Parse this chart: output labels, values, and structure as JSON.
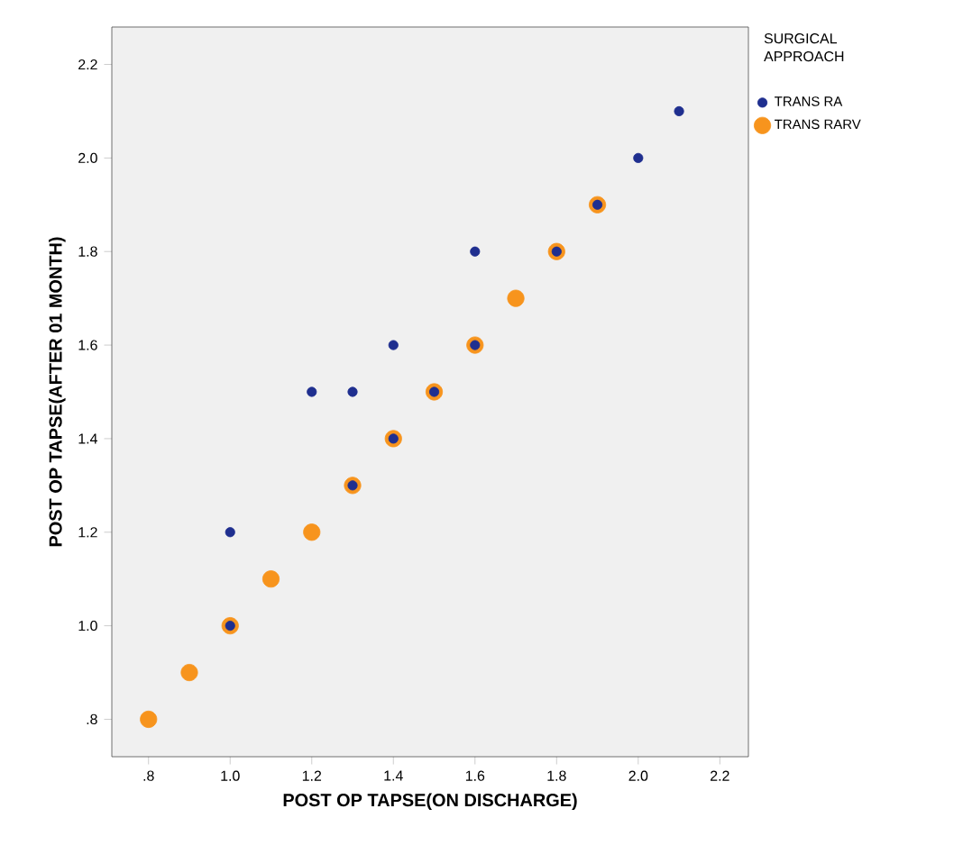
{
  "chart_data": {
    "type": "scatter",
    "xlabel": "POST OP TAPSE(ON DISCHARGE)",
    "ylabel": "POST OP TAPSE(AFTER 01 MONTH)",
    "legend_title": "SURGICAL APPROACH",
    "legend": "right",
    "marker": "circle",
    "xlim": [
      0.71,
      2.27
    ],
    "ylim": [
      0.72,
      2.28
    ],
    "xticks": [
      {
        "value": 0.8,
        "label": ".8"
      },
      {
        "value": 1.0,
        "label": "1.0"
      },
      {
        "value": 1.2,
        "label": "1.2"
      },
      {
        "value": 1.4,
        "label": "1.4"
      },
      {
        "value": 1.6,
        "label": "1.6"
      },
      {
        "value": 1.8,
        "label": "1.8"
      },
      {
        "value": 2.0,
        "label": "2.0"
      },
      {
        "value": 2.2,
        "label": "2.2"
      }
    ],
    "yticks": [
      {
        "value": 0.8,
        "label": ".8"
      },
      {
        "value": 1.0,
        "label": "1.0"
      },
      {
        "value": 1.2,
        "label": "1.2"
      },
      {
        "value": 1.4,
        "label": "1.4"
      },
      {
        "value": 1.6,
        "label": "1.6"
      },
      {
        "value": 1.8,
        "label": "1.8"
      },
      {
        "value": 2.0,
        "label": "2.0"
      },
      {
        "value": 2.2,
        "label": "2.2"
      }
    ],
    "series": [
      {
        "name": "TRANS RA",
        "color": "#1f2f8f",
        "x": [
          1.0,
          1.0,
          1.2,
          1.3,
          1.3,
          1.4,
          1.4,
          1.5,
          1.6,
          1.6,
          1.8,
          1.9,
          2.0,
          2.1
        ],
        "values": [
          1.2,
          1.0,
          1.5,
          1.5,
          1.3,
          1.6,
          1.4,
          1.5,
          1.8,
          1.6,
          1.8,
          1.9,
          2.0,
          2.1
        ]
      },
      {
        "name": "TRANS RARV",
        "color": "#f7941d",
        "x": [
          0.8,
          0.9,
          1.0,
          1.1,
          1.2,
          1.3,
          1.4,
          1.5,
          1.6,
          1.7,
          1.8,
          1.9
        ],
        "values": [
          0.8,
          0.9,
          1.0,
          1.1,
          1.2,
          1.3,
          1.4,
          1.5,
          1.6,
          1.7,
          1.8,
          1.9
        ]
      }
    ]
  }
}
